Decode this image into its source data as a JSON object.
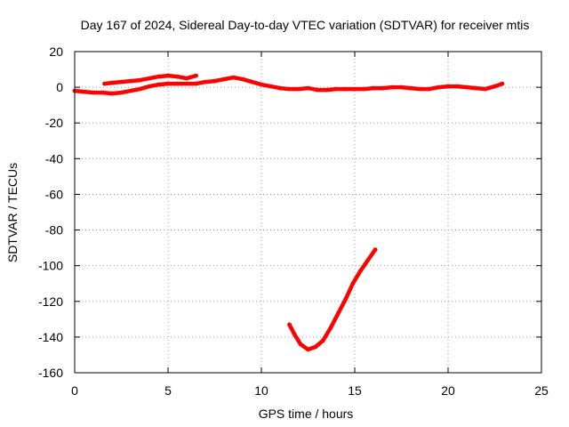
{
  "chart_data": {
    "type": "scatter",
    "title": "Day 167 of 2024, Sidereal Day-to-day VTEC variation (SDTVAR) for receiver mtis",
    "xlabel": "GPS time / hours",
    "ylabel": "SDTVAR / TECUs",
    "xlim": [
      0,
      25
    ],
    "ylim": [
      -160,
      20
    ],
    "xticks": [
      0,
      5,
      10,
      15,
      20,
      25
    ],
    "yticks": [
      20,
      0,
      -20,
      -40,
      -60,
      -80,
      -100,
      -120,
      -140,
      -160
    ],
    "grid": true,
    "legend": "none",
    "color": "#ff0000",
    "series": [
      {
        "points": [
          [
            0.0,
            -2
          ],
          [
            0.5,
            -2.5
          ],
          [
            1.0,
            -3
          ],
          [
            1.5,
            -3
          ],
          [
            2.0,
            -3.5
          ],
          [
            2.5,
            -3
          ],
          [
            3.0,
            -2
          ],
          [
            3.5,
            -1
          ],
          [
            4.0,
            0.5
          ],
          [
            4.5,
            1.5
          ],
          [
            5.0,
            2
          ],
          [
            5.5,
            2
          ],
          [
            6.0,
            2
          ],
          [
            6.5,
            2
          ],
          [
            7.0,
            3
          ],
          [
            7.5,
            3.5
          ],
          [
            8.0,
            4.5
          ],
          [
            8.5,
            5.5
          ],
          [
            9.0,
            4.5
          ],
          [
            9.5,
            3
          ],
          [
            10.0,
            1.5
          ],
          [
            10.5,
            0.5
          ],
          [
            11.0,
            -0.5
          ],
          [
            11.5,
            -1
          ],
          [
            12.0,
            -1
          ],
          [
            12.5,
            -0.5
          ],
          [
            13.0,
            -1.5
          ],
          [
            13.5,
            -1.5
          ],
          [
            14.0,
            -1
          ],
          [
            14.5,
            -1
          ],
          [
            15.0,
            -1
          ],
          [
            15.5,
            -1
          ],
          [
            16.0,
            -0.5
          ],
          [
            16.5,
            -0.5
          ],
          [
            17.0,
            0
          ],
          [
            17.5,
            0
          ],
          [
            18.0,
            -0.5
          ],
          [
            18.5,
            -1
          ],
          [
            19.0,
            -1
          ],
          [
            19.5,
            0
          ],
          [
            20.0,
            0.5
          ],
          [
            20.5,
            0.5
          ],
          [
            21.0,
            0
          ],
          [
            21.5,
            -0.5
          ],
          [
            22.0,
            -1
          ],
          [
            22.5,
            0.5
          ],
          [
            22.9,
            2
          ]
        ]
      },
      {
        "points": [
          [
            1.6,
            2
          ],
          [
            2.0,
            2.5
          ],
          [
            2.5,
            3
          ],
          [
            3.0,
            3.5
          ],
          [
            3.5,
            4
          ],
          [
            4.0,
            5
          ],
          [
            4.5,
            6
          ],
          [
            5.0,
            6.5
          ],
          [
            5.5,
            6
          ],
          [
            6.0,
            5
          ],
          [
            6.5,
            6.5
          ]
        ]
      },
      {
        "points": [
          [
            11.5,
            -133
          ],
          [
            11.8,
            -139
          ],
          [
            12.1,
            -144
          ],
          [
            12.5,
            -147
          ],
          [
            12.9,
            -145.5
          ],
          [
            13.3,
            -142
          ],
          [
            13.7,
            -135
          ],
          [
            14.1,
            -127
          ],
          [
            14.5,
            -119
          ],
          [
            14.9,
            -110
          ],
          [
            15.3,
            -103
          ],
          [
            15.7,
            -97
          ],
          [
            16.1,
            -91
          ]
        ]
      }
    ]
  }
}
